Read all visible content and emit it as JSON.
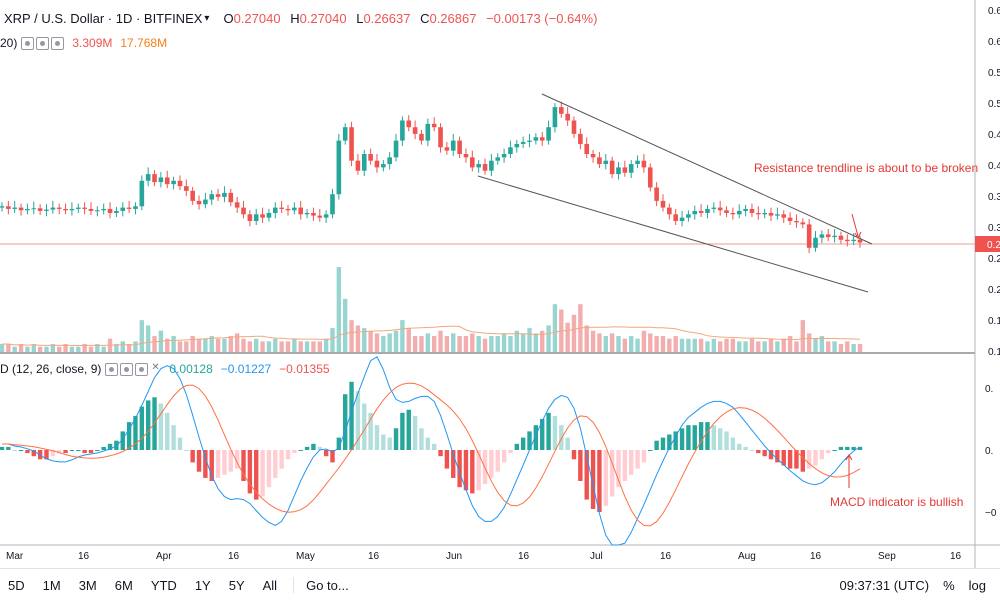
{
  "header": {
    "symbol": "XRP / U.S. Dollar · 1D · BITFINEX",
    "ohlc": [
      {
        "key": "O",
        "value": "0.27040"
      },
      {
        "key": "H",
        "value": "0.27040"
      },
      {
        "key": "L",
        "value": "0.26637"
      },
      {
        "key": "C",
        "value": "0.26867"
      }
    ],
    "change": "−0.00173 (−0.64%)"
  },
  "volume_indicator": {
    "label": "20)",
    "value_1": "3.309M",
    "value_2": "17.768M",
    "value_1_color": "#ef5350",
    "value_2_color": "#f57f17"
  },
  "macd_indicator": {
    "label": "D (12, 26, close, 9)",
    "hist_value": "0.00128",
    "macd_value": "−0.01227",
    "signal_value": "−0.01355",
    "hist_color": "#26a69a",
    "macd_color": "#2196f3",
    "signal_color": "#ef5350"
  },
  "price_axis_labels": [
    "0.6",
    "0.6",
    "0.5",
    "0.5",
    "0.4",
    "0.4",
    "0.3",
    "0.3",
    "0.2",
    "0.2",
    "0.1",
    "0.1"
  ],
  "price_badge": "0.2",
  "macd_axis_labels": [
    "0.",
    "0.",
    "−0"
  ],
  "time_axis_labels": [
    "Mar",
    "16",
    "Apr",
    "16",
    "May",
    "16",
    "Jun",
    "16",
    "Jul",
    "16",
    "Aug",
    "16",
    "Sep",
    "16"
  ],
  "annotations": {
    "resistance": "Resistance trendline is about to be broken",
    "macd": "MACD indicator is bullish"
  },
  "bottom_bar": {
    "ranges": [
      "5D",
      "1M",
      "3M",
      "6M",
      "YTD",
      "1Y",
      "5Y",
      "All"
    ],
    "goto": "Go to...",
    "time": "09:37:31 (UTC)",
    "percent": "%",
    "log": "log"
  },
  "colors": {
    "up": "#26a69a",
    "down": "#ef5350",
    "macd_line": "#2196f3",
    "signal_line": "#ff7043",
    "trendline": "#555555",
    "annotation": "#e53935"
  },
  "chart_data": {
    "type": "candlestick",
    "series": [
      {
        "name": "price",
        "values": [
          0.322,
          0.318,
          0.32,
          0.316,
          0.318,
          0.319,
          0.315,
          0.317,
          0.32,
          0.318,
          0.316,
          0.318,
          0.32,
          0.318,
          0.315,
          0.316,
          0.318,
          0.312,
          0.315,
          0.32,
          0.318,
          0.322,
          0.36,
          0.37,
          0.358,
          0.365,
          0.355,
          0.36,
          0.352,
          0.345,
          0.33,
          0.325,
          0.332,
          0.34,
          0.336,
          0.342,
          0.328,
          0.32,
          0.31,
          0.3,
          0.31,
          0.305,
          0.312,
          0.32,
          0.318,
          0.316,
          0.32,
          0.31,
          0.312,
          0.308,
          0.305,
          0.31,
          0.34,
          0.42,
          0.44,
          0.39,
          0.375,
          0.4,
          0.39,
          0.38,
          0.385,
          0.395,
          0.42,
          0.45,
          0.44,
          0.43,
          0.42,
          0.445,
          0.44,
          0.41,
          0.405,
          0.42,
          0.4,
          0.395,
          0.38,
          0.385,
          0.375,
          0.39,
          0.395,
          0.4,
          0.41,
          0.415,
          0.418,
          0.42,
          0.425,
          0.42,
          0.44,
          0.47,
          0.46,
          0.45,
          0.43,
          0.415,
          0.4,
          0.395,
          0.385,
          0.39,
          0.37,
          0.38,
          0.372,
          0.385,
          0.39,
          0.38,
          0.35,
          0.33,
          0.32,
          0.31,
          0.3,
          0.305,
          0.31,
          0.315,
          0.312,
          0.318,
          0.32,
          0.316,
          0.312,
          0.31,
          0.315,
          0.318,
          0.312,
          0.31,
          0.312,
          0.308,
          0.31,
          0.305,
          0.3,
          0.298,
          0.295,
          0.26,
          0.275,
          0.28,
          0.276,
          0.278,
          0.272,
          0.27,
          0.272,
          0.268
        ]
      },
      {
        "name": "volume",
        "values": [
          0.03,
          0.03,
          0.02,
          0.03,
          0.02,
          0.03,
          0.02,
          0.02,
          0.03,
          0.02,
          0.03,
          0.02,
          0.02,
          0.03,
          0.02,
          0.03,
          0.02,
          0.05,
          0.03,
          0.04,
          0.03,
          0.04,
          0.12,
          0.1,
          0.06,
          0.08,
          0.05,
          0.06,
          0.04,
          0.04,
          0.06,
          0.05,
          0.05,
          0.06,
          0.05,
          0.05,
          0.06,
          0.07,
          0.05,
          0.04,
          0.05,
          0.04,
          0.04,
          0.05,
          0.04,
          0.04,
          0.05,
          0.04,
          0.04,
          0.04,
          0.04,
          0.05,
          0.09,
          0.32,
          0.2,
          0.12,
          0.1,
          0.09,
          0.08,
          0.07,
          0.06,
          0.07,
          0.08,
          0.12,
          0.09,
          0.06,
          0.06,
          0.07,
          0.06,
          0.08,
          0.06,
          0.07,
          0.06,
          0.06,
          0.07,
          0.06,
          0.05,
          0.06,
          0.06,
          0.07,
          0.06,
          0.08,
          0.07,
          0.09,
          0.07,
          0.08,
          0.1,
          0.18,
          0.16,
          0.11,
          0.14,
          0.18,
          0.1,
          0.08,
          0.07,
          0.06,
          0.07,
          0.06,
          0.05,
          0.06,
          0.05,
          0.08,
          0.07,
          0.06,
          0.06,
          0.05,
          0.06,
          0.05,
          0.05,
          0.05,
          0.05,
          0.04,
          0.05,
          0.04,
          0.05,
          0.05,
          0.04,
          0.04,
          0.05,
          0.04,
          0.04,
          0.05,
          0.04,
          0.05,
          0.06,
          0.04,
          0.12,
          0.07,
          0.05,
          0.06,
          0.04,
          0.04,
          0.03,
          0.04,
          0.03,
          0.03
        ]
      },
      {
        "name": "macd_histogram",
        "values": [
          0.001,
          0.001,
          0.0,
          0.0,
          -0.001,
          -0.002,
          -0.003,
          -0.003,
          -0.002,
          -0.001,
          -0.001,
          0.0,
          0.0,
          -0.001,
          -0.001,
          0.0,
          0.001,
          0.002,
          0.003,
          0.006,
          0.009,
          0.011,
          0.014,
          0.016,
          0.017,
          0.015,
          0.012,
          0.008,
          0.004,
          0.0,
          -0.004,
          -0.007,
          -0.009,
          -0.01,
          -0.009,
          -0.008,
          -0.007,
          -0.006,
          -0.01,
          -0.014,
          -0.016,
          -0.015,
          -0.012,
          -0.009,
          -0.006,
          -0.003,
          -0.001,
          0.0,
          0.001,
          0.002,
          0.001,
          -0.002,
          -0.004,
          0.004,
          0.018,
          0.022,
          0.019,
          0.015,
          0.012,
          0.008,
          0.005,
          0.004,
          0.007,
          0.012,
          0.013,
          0.011,
          0.007,
          0.004,
          0.002,
          -0.002,
          -0.006,
          -0.009,
          -0.012,
          -0.013,
          -0.014,
          -0.013,
          -0.011,
          -0.009,
          -0.007,
          -0.004,
          -0.001,
          0.002,
          0.004,
          0.006,
          0.008,
          0.01,
          0.012,
          0.011,
          0.008,
          0.004,
          -0.003,
          -0.01,
          -0.016,
          -0.019,
          -0.02,
          -0.018,
          -0.015,
          -0.012,
          -0.01,
          -0.008,
          -0.006,
          -0.004,
          0.0,
          0.003,
          0.004,
          0.005,
          0.006,
          0.007,
          0.008,
          0.008,
          0.009,
          0.009,
          0.008,
          0.007,
          0.006,
          0.004,
          0.002,
          0.001,
          0.0,
          -0.001,
          -0.002,
          -0.003,
          -0.004,
          -0.005,
          -0.006,
          -0.006,
          -0.007,
          -0.006,
          -0.005,
          -0.003,
          -0.001,
          0.0,
          0.001,
          0.001,
          0.001,
          0.001
        ]
      }
    ]
  }
}
